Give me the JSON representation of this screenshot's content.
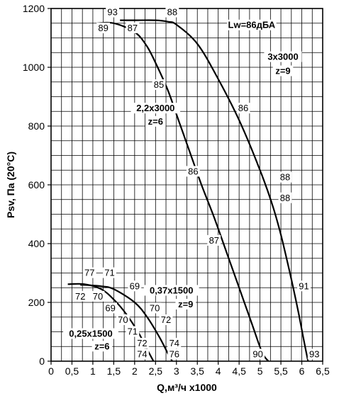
{
  "chart_data": {
    "type": "line",
    "xlabel": "Q,м³/ч x1000",
    "ylabel": "Psv, Па (20°С)",
    "xlim": [
      0,
      6.5
    ],
    "ylim": [
      0,
      1200
    ],
    "x_ticks": [
      "0",
      "0,5",
      "1",
      "1,5",
      "2",
      "2,5",
      "3",
      "3,5",
      "4",
      "4,5",
      "5",
      "5,5",
      "6",
      "6,5"
    ],
    "y_ticks": [
      "0",
      "200",
      "400",
      "600",
      "800",
      "1000",
      "1200"
    ],
    "grid": true,
    "series": [
      {
        "x": [
          1.1,
          1.5,
          2.0,
          2.3,
          2.55,
          2.8,
          3.05,
          3.3,
          3.6,
          3.9,
          4.2,
          4.5,
          4.8,
          5.05,
          5.2
        ],
        "y": [
          1150,
          1150,
          1120,
          1070,
          1000,
          920,
          820,
          720,
          600,
          490,
          370,
          250,
          130,
          30,
          0
        ]
      },
      {
        "x": [
          1.65,
          2.0,
          2.5,
          2.8,
          3.0,
          3.5,
          4.0,
          4.5,
          5.0,
          5.3,
          5.5,
          5.7,
          5.9,
          6.05,
          6.15
        ],
        "y": [
          1160,
          1160,
          1160,
          1155,
          1145,
          1080,
          960,
          820,
          650,
          530,
          430,
          310,
          180,
          70,
          0
        ]
      },
      {
        "x": [
          0.7,
          1.2,
          1.5,
          2.0,
          2.3,
          2.6,
          2.8,
          2.9
        ],
        "y": [
          260,
          255,
          245,
          200,
          150,
          80,
          25,
          0
        ]
      },
      {
        "x": [
          0.4,
          0.8,
          1.2,
          1.5,
          1.8,
          2.1,
          2.3,
          2.45
        ],
        "y": [
          262,
          262,
          245,
          210,
          160,
          95,
          40,
          0
        ]
      }
    ],
    "annotations": [
      {
        "text": "93",
        "x": 1.47,
        "y": 1182
      },
      {
        "text": "88",
        "x": 2.9,
        "y": 1182
      },
      {
        "text": "89",
        "x": 1.25,
        "y": 1128
      },
      {
        "text": "87",
        "x": 1.95,
        "y": 1128
      },
      {
        "text": "Lw=86дБА",
        "x": 4.8,
        "y": 1138,
        "bold": true
      },
      {
        "text": "3x3000",
        "x": 5.55,
        "y": 1030,
        "bold": true
      },
      {
        "text": "z=9",
        "x": 5.55,
        "y": 982,
        "bold": true
      },
      {
        "text": "85",
        "x": 2.58,
        "y": 935
      },
      {
        "text": "86",
        "x": 4.6,
        "y": 855
      },
      {
        "text": "2,2x3000",
        "x": 2.5,
        "y": 855,
        "bold": true
      },
      {
        "text": "z=6",
        "x": 2.5,
        "y": 810,
        "bold": true
      },
      {
        "text": "86",
        "x": 3.4,
        "y": 640
      },
      {
        "text": "88",
        "x": 5.6,
        "y": 620
      },
      {
        "text": "88",
        "x": 5.6,
        "y": 550
      },
      {
        "text": "87",
        "x": 3.9,
        "y": 405
      },
      {
        "text": "77",
        "x": 0.92,
        "y": 295
      },
      {
        "text": "71",
        "x": 1.4,
        "y": 295
      },
      {
        "text": "69",
        "x": 2.0,
        "y": 250
      },
      {
        "text": "0,37x1500",
        "x": 2.88,
        "y": 235,
        "bold": true
      },
      {
        "text": "z=9",
        "x": 3.22,
        "y": 188,
        "bold": true
      },
      {
        "text": "91",
        "x": 6.05,
        "y": 250
      },
      {
        "text": "72",
        "x": 0.7,
        "y": 215
      },
      {
        "text": "70",
        "x": 1.12,
        "y": 215
      },
      {
        "text": "69",
        "x": 1.42,
        "y": 175
      },
      {
        "text": "70",
        "x": 2.48,
        "y": 175
      },
      {
        "text": "72",
        "x": 2.75,
        "y": 135
      },
      {
        "text": "70",
        "x": 1.72,
        "y": 135
      },
      {
        "text": "71",
        "x": 1.95,
        "y": 95
      },
      {
        "text": "0,25x1500",
        "x": 0.95,
        "y": 88,
        "bold": true
      },
      {
        "text": "z=6",
        "x": 1.22,
        "y": 45,
        "bold": true
      },
      {
        "text": "72",
        "x": 2.18,
        "y": 55
      },
      {
        "text": "74",
        "x": 2.95,
        "y": 55
      },
      {
        "text": "74",
        "x": 2.18,
        "y": 18
      },
      {
        "text": "76",
        "x": 2.95,
        "y": 18
      },
      {
        "text": "90",
        "x": 4.95,
        "y": 18
      },
      {
        "text": "93",
        "x": 6.3,
        "y": 18
      }
    ]
  }
}
